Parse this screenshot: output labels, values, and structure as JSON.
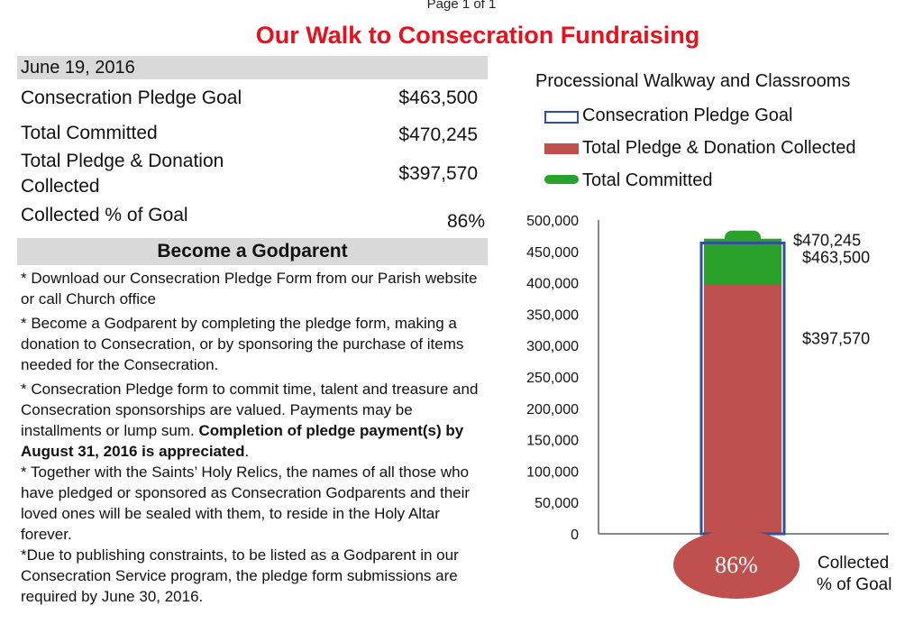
{
  "header": {
    "page_indicator": "Page 1 of 1",
    "title": "Our Walk to Consecration Fundraising"
  },
  "summary": {
    "date": "June 19, 2016",
    "rows": [
      {
        "label": "Consecration Pledge Goal",
        "value": "$463,500"
      },
      {
        "label": "Total Committed",
        "value": "$470,245"
      },
      {
        "label": "Total Pledge & Donation Collected",
        "value": "$397,570"
      },
      {
        "label": "Collected % of Goal",
        "value": "86%"
      }
    ]
  },
  "godparent": {
    "heading": "Become a Godparent",
    "notes": [
      {
        "text": "* Download our Consecration Pledge Form from our Parish website or call Church office"
      },
      {
        "text": "* Become a Godparent by completing the pledge form, making a donation to Consecration, or by sponsoring the purchase of items needed for the Consecration."
      },
      {
        "text": "* Consecration Pledge form to commit time, talent and treasure and Consecration sponsorships are valued. Payments may be installments or lump sum. ",
        "bold": "Completion of pledge payment(s) by August 31, 2016 is appreciated",
        "after": "."
      },
      {
        "text": "*  Together with the Saints’ Holy Relics, the names of all those who have pledged or sponsored as Consecration Godparents and their loved ones will be sealed with them, to reside in the Holy Altar forever."
      },
      {
        "text": "*Due to publishing constraints, to be listed as a Godparent in our Consecration Service program, the pledge form submissions are required by June 30, 2016."
      }
    ]
  },
  "chart_data": {
    "type": "bar",
    "title": "Processional Walkway and Classrooms",
    "ylim": [
      0,
      500000
    ],
    "yticks": [
      "0",
      "50,000",
      "100,000",
      "150,000",
      "200,000",
      "250,000",
      "300,000",
      "350,000",
      "400,000",
      "450,000",
      "500,000"
    ],
    "series": [
      {
        "name": "Consecration Pledge Goal",
        "value": 463500,
        "label": "$463,500",
        "color": "#2f4f9e"
      },
      {
        "name": "Total Pledge & Donation Collected",
        "value": 397570,
        "label": "$397,570",
        "color": "#c0504d"
      },
      {
        "name": "Total Committed",
        "value": 470245,
        "label": "$470,245",
        "color": "#2aa12a"
      }
    ],
    "percent_label": "86%",
    "percent_caption": [
      "Collected",
      "% of Goal"
    ],
    "grid": false,
    "legend": "top"
  }
}
